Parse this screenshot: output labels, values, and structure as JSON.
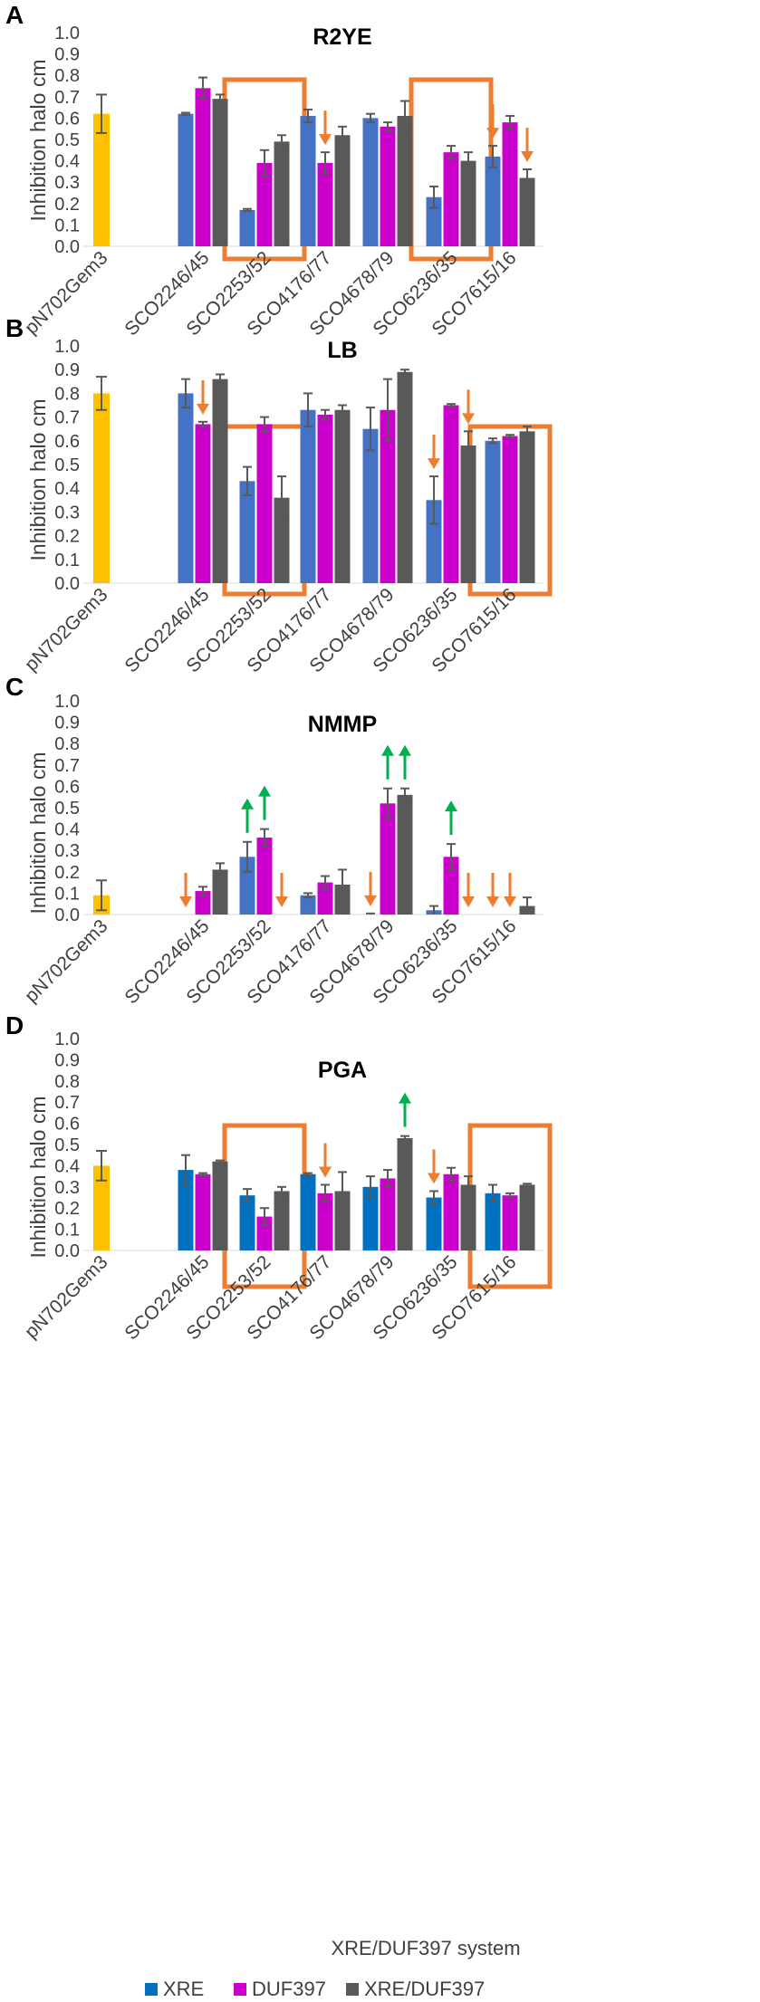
{
  "colors": {
    "control": "#FFC000",
    "XRE": "#4472C4",
    "XRE_D": "#0070C0",
    "DUF397": "#CC00CC",
    "XRE/DUF397": "#595959",
    "box": "#ED7D31",
    "down_arrow": "#ED7D31",
    "up_arrow": "#00B050",
    "axis_text": "#404040"
  },
  "legend": {
    "items": [
      "XRE",
      "DUF397",
      "XRE/DUF397"
    ]
  },
  "x_axis_title": "XRE/DUF397 system",
  "chart_data": [
    {
      "type": "bar",
      "panel": "A",
      "title": "R2YE",
      "ylabel": "Inhibition halo cm",
      "ylim": [
        0,
        1.0
      ],
      "yticks": [
        "0.0",
        "0.1",
        "0.2",
        "0.3",
        "0.4",
        "0.5",
        "0.6",
        "0.7",
        "0.8",
        "0.9",
        "1.0"
      ],
      "categories": [
        "pN702Gem3",
        "SCO2246/45",
        "SCO2253/52",
        "SCO4176/77",
        "SCO4678/79",
        "SCO6236/35",
        "SCO7615/16"
      ],
      "control": {
        "value": 0.62,
        "err": 0.09
      },
      "series": [
        {
          "name": "XRE",
          "values": [
            null,
            0.62,
            0.17,
            0.61,
            0.6,
            0.23,
            0.42
          ],
          "errors": [
            null,
            0.005,
            0.005,
            0.03,
            0.02,
            0.05,
            0.05
          ]
        },
        {
          "name": "DUF397",
          "values": [
            null,
            0.74,
            0.39,
            0.39,
            0.56,
            0.44,
            0.58
          ],
          "errors": [
            null,
            0.05,
            0.06,
            0.05,
            0.02,
            0.03,
            0.03
          ]
        },
        {
          "name": "XRE/DUF397",
          "values": [
            null,
            0.69,
            0.49,
            0.52,
            0.61,
            0.4,
            0.32
          ],
          "errors": [
            null,
            0.02,
            0.03,
            0.04,
            0.07,
            0.04,
            0.04
          ]
        }
      ],
      "boxes": [
        "SCO2253/52",
        "SCO6236/35"
      ],
      "down_arrows": [
        [
          "SCO4176/77",
          "DUF397"
        ],
        [
          "SCO7615/16",
          "XRE"
        ],
        [
          "SCO7615/16",
          "XRE/DUF397"
        ]
      ],
      "up_arrows": []
    },
    {
      "type": "bar",
      "panel": "B",
      "title": "LB",
      "ylabel": "Inhibition halo cm",
      "ylim": [
        0,
        1.0
      ],
      "yticks": [
        "0.0",
        "0.1",
        "0.2",
        "0.3",
        "0.4",
        "0.5",
        "0.6",
        "0.7",
        "0.8",
        "0.9",
        "1.0"
      ],
      "categories": [
        "pN702Gem3",
        "SCO2246/45",
        "SCO2253/52",
        "SCO4176/77",
        "SCO4678/79",
        "SCO6236/35",
        "SCO7615/16"
      ],
      "control": {
        "value": 0.8,
        "err": 0.07
      },
      "series": [
        {
          "name": "XRE",
          "values": [
            null,
            0.8,
            0.43,
            0.73,
            0.65,
            0.35,
            0.6
          ],
          "errors": [
            null,
            0.06,
            0.06,
            0.07,
            0.09,
            0.1,
            0.01
          ]
        },
        {
          "name": "DUF397",
          "values": [
            null,
            0.67,
            0.67,
            0.71,
            0.73,
            0.75,
            0.62
          ],
          "errors": [
            null,
            0.01,
            0.03,
            0.02,
            0.13,
            0.005,
            0.005
          ]
        },
        {
          "name": "XRE/DUF397",
          "values": [
            null,
            0.86,
            0.36,
            0.73,
            0.89,
            0.58,
            0.64
          ],
          "errors": [
            null,
            0.02,
            0.09,
            0.02,
            0.01,
            0.06,
            0.02
          ]
        }
      ],
      "boxes": [
        "SCO2253/52",
        "SCO7615/16"
      ],
      "down_arrows": [
        [
          "SCO2246/45",
          "DUF397"
        ],
        [
          "SCO6236/35",
          "XRE"
        ],
        [
          "SCO6236/35",
          "XRE/DUF397"
        ]
      ],
      "up_arrows": []
    },
    {
      "type": "bar",
      "panel": "C",
      "title": "NMMP",
      "ylabel": "Inhibition halo cm",
      "ylim": [
        0,
        1.0
      ],
      "yticks": [
        "0.0",
        "0.1",
        "0.2",
        "0.3",
        "0.4",
        "0.5",
        "0.6",
        "0.7",
        "0.8",
        "0.9",
        "1.0"
      ],
      "categories": [
        "pN702Gem3",
        "SCO2246/45",
        "SCO2253/52",
        "SCO4176/77",
        "SCO4678/79",
        "SCO6236/35",
        "SCO7615/16"
      ],
      "control": {
        "value": 0.09,
        "err": 0.07
      },
      "series": [
        {
          "name": "XRE",
          "values": [
            null,
            0.0,
            0.27,
            0.09,
            0.0,
            0.02,
            0.0
          ],
          "errors": [
            null,
            0,
            0.07,
            0.01,
            0.005,
            0.02,
            0
          ]
        },
        {
          "name": "DUF397",
          "values": [
            null,
            0.11,
            0.36,
            0.15,
            0.52,
            0.27,
            0.0
          ],
          "errors": [
            null,
            0.02,
            0.04,
            0.03,
            0.07,
            0.06,
            0
          ]
        },
        {
          "name": "XRE/DUF397",
          "values": [
            null,
            0.21,
            0.0,
            0.14,
            0.56,
            0.0,
            0.04
          ],
          "errors": [
            null,
            0.03,
            0,
            0.07,
            0.03,
            0,
            0.04
          ]
        }
      ],
      "boxes": [],
      "down_arrows": [
        [
          "SCO2246/45",
          "XRE"
        ],
        [
          "SCO2253/52",
          "XRE/DUF397"
        ],
        [
          "SCO4678/79",
          "XRE"
        ],
        [
          "SCO6236/35",
          "XRE/DUF397"
        ],
        [
          "SCO7615/16",
          "XRE"
        ],
        [
          "SCO7615/16",
          "DUF397"
        ]
      ],
      "up_arrows": [
        [
          "SCO2253/52",
          "XRE"
        ],
        [
          "SCO2253/52",
          "DUF397"
        ],
        [
          "SCO4678/79",
          "DUF397"
        ],
        [
          "SCO4678/79",
          "XRE/DUF397"
        ],
        [
          "SCO6236/35",
          "DUF397"
        ]
      ]
    },
    {
      "type": "bar",
      "panel": "D",
      "title": "PGA",
      "ylabel": "Inhibition halo cm",
      "ylim": [
        0,
        1.0
      ],
      "yticks": [
        "0.0",
        "0.1",
        "0.2",
        "0.3",
        "0.4",
        "0.5",
        "0.6",
        "0.7",
        "0.8",
        "0.9",
        "1.0"
      ],
      "categories": [
        "pN702Gem3",
        "SCO2246/45",
        "SCO2253/52",
        "SCO4176/77",
        "SCO4678/79",
        "SCO6236/35",
        "SCO7615/16"
      ],
      "control": {
        "value": 0.4,
        "err": 0.07
      },
      "series": [
        {
          "name": "XRE",
          "values": [
            null,
            0.38,
            0.26,
            0.36,
            0.3,
            0.25,
            0.27
          ],
          "errors": [
            null,
            0.07,
            0.03,
            0.005,
            0.05,
            0.03,
            0.04
          ]
        },
        {
          "name": "DUF397",
          "values": [
            null,
            0.36,
            0.16,
            0.27,
            0.34,
            0.36,
            0.26
          ],
          "errors": [
            null,
            0.005,
            0.04,
            0.04,
            0.04,
            0.03,
            0.01
          ]
        },
        {
          "name": "XRE/DUF397",
          "values": [
            null,
            0.42,
            0.28,
            0.28,
            0.53,
            0.31,
            0.31
          ],
          "errors": [
            null,
            0.005,
            0.02,
            0.09,
            0.01,
            0.04,
            0.005
          ]
        }
      ],
      "boxes": [
        "SCO2253/52",
        "SCO7615/16"
      ],
      "down_arrows": [
        [
          "SCO4176/77",
          "DUF397"
        ],
        [
          "SCO6236/35",
          "XRE"
        ]
      ],
      "up_arrows": [
        [
          "SCO4678/79",
          "XRE/DUF397"
        ]
      ]
    }
  ]
}
